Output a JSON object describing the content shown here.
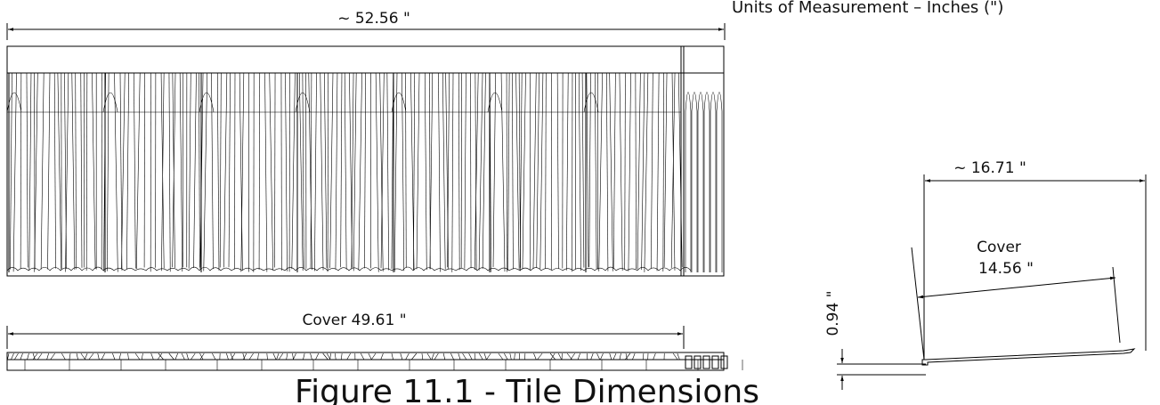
{
  "header": {
    "units_note": "Units of Measurement – Inches (\")"
  },
  "front_view": {
    "width_label": "~ 52.56 \"",
    "cover_label": "Cover 49.61 \""
  },
  "side_view": {
    "width_label": "~ 16.71 \"",
    "cover_label": "Cover",
    "cover_value": "14.56 \"",
    "height_label": "0.94 \""
  },
  "caption": "Figure 11.1 - Tile Dimensions"
}
